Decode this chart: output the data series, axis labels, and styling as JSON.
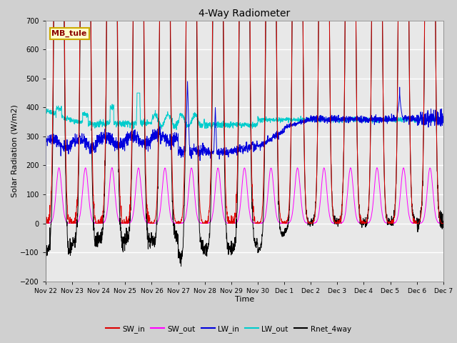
{
  "title": "4-Way Radiometer",
  "xlabel": "Time",
  "ylabel": "Solar Radiation (W/m2)",
  "ylim": [
    -200,
    700
  ],
  "yticks": [
    -200,
    -100,
    0,
    100,
    200,
    300,
    400,
    500,
    600,
    700
  ],
  "station_label": "MB_tule",
  "colors": {
    "SW_in": "#dd0000",
    "SW_out": "#ff00ff",
    "LW_in": "#0000dd",
    "LW_out": "#00cccc",
    "Rnet_4way": "#000000"
  },
  "legend_labels": [
    "SW_in",
    "SW_out",
    "LW_in",
    "LW_out",
    "Rnet_4way"
  ],
  "fig_bg": "#d0d0d0",
  "plot_bg": "#e8e8e8",
  "grid_color": "#ffffff",
  "x_tick_labels": [
    "Nov 22",
    "Nov 23",
    "Nov 24",
    "Nov 25",
    "Nov 26",
    "Nov 27",
    "Nov 28",
    "Nov 29",
    "Nov 30",
    "Dec 1",
    "Dec 2",
    "Dec 3",
    "Dec 4",
    "Dec 5",
    "Dec 6",
    "Dec 7"
  ],
  "n_days": 15,
  "pts_per_day": 144
}
